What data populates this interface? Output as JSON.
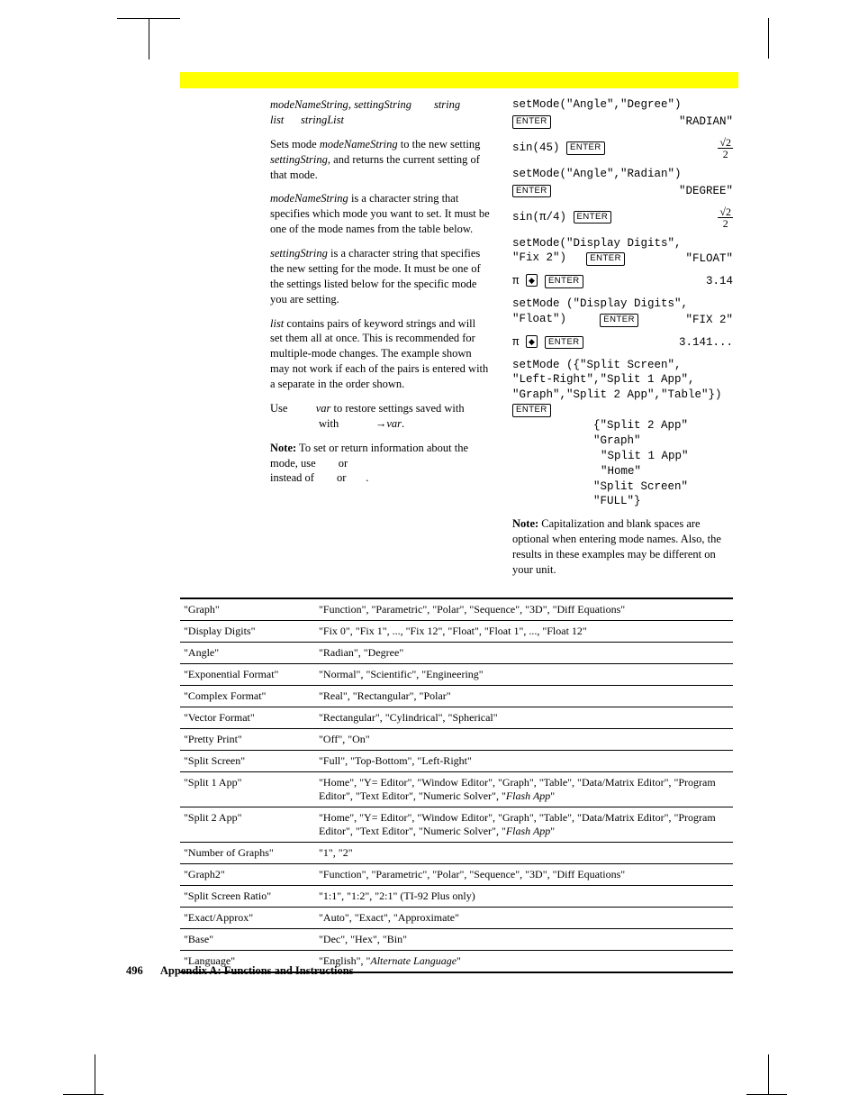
{
  "yellow_bar_color": "#ffff00",
  "left": {
    "syntax1": {
      "a": "modeNameString",
      "b": "settingString",
      "c": "string"
    },
    "syntax2": {
      "a": "list",
      "b": "stringList"
    },
    "p1": {
      "pre": "Sets mode ",
      "i1": "modeNameString",
      "mid": " to the new setting ",
      "i2": "settingString",
      "post": ", and returns the current setting of that mode."
    },
    "p2": {
      "i1": "modeNameString",
      "post": " is a character string that specifies which mode you want to set. It must be one of the mode names from the table below."
    },
    "p3": {
      "i1": "settingString",
      "post": " is a character string that specifies the new setting for the mode. It must be one of the settings listed below for the specific mode you are setting."
    },
    "p4": {
      "i1": "list",
      "post": " contains pairs of keyword strings and will set them all at once. This is recommended for multiple-mode changes. The example shown may not work if each of the pairs is entered with a separate           in the order shown."
    },
    "use": {
      "a": "Use",
      "i1": "var",
      "b": " to restore settings saved with",
      "arrow": "→",
      "i2": "var",
      "dot": "."
    },
    "note": {
      "lead": "Note:",
      "body1": " To set or return information about the ",
      "body2": " mode, use ",
      "or1": " or ",
      "body3": " instead of ",
      "or2": " or ",
      "dot": "."
    }
  },
  "right": {
    "ex1": {
      "cmd": "setMode(\"Angle\",\"Degree\")",
      "result": "\"RADIAN\""
    },
    "ex2": {
      "cmd": "sin(45)",
      "frac": {
        "num": "√2",
        "den": "2"
      }
    },
    "ex3": {
      "cmd": "setMode(\"Angle\",\"Radian\")",
      "result": "\"DEGREE\""
    },
    "ex4": {
      "cmd": "sin(π/4)",
      "frac": {
        "num": "√2",
        "den": "2"
      }
    },
    "ex5": {
      "cmd": "setMode(\"Display Digits\",\n\"Fix 2\")",
      "result": "\"FLOAT\""
    },
    "ex6": {
      "cmd": "π",
      "result": "3.14"
    },
    "ex7": {
      "cmd": "setMode (\"Display Digits\",\n\"Float\")",
      "result": "\"FIX 2\""
    },
    "ex8": {
      "cmd": "π",
      "result": "3.141..."
    },
    "ex9": {
      "cmd": "setMode ({\"Split Screen\",\n\"Left-Right\",\"Split 1 App\",\n\"Graph\",\"Split 2 App\",\"Table\"})"
    },
    "ex9r": [
      "{\"Split 2 App\" \"Graph\"",
      "\"Split 1 App\" \"Home\"",
      "\"Split Screen\" \"FULL\"}"
    ],
    "note": {
      "lead": "Note:",
      "body": " Capitalization and blank spaces are optional when entering mode names. Also, the results in these examples may be different on your unit."
    }
  },
  "table": [
    [
      "\"Graph\"",
      "\"Function\", \"Parametric\", \"Polar\", \"Sequence\", \"3D\", \"Diff Equations\""
    ],
    [
      "\"Display Digits\"",
      "\"Fix 0\", \"Fix 1\", ..., \"Fix 12\", \"Float\", \"Float 1\", ..., \"Float 12\""
    ],
    [
      "\"Angle\"",
      "\"Radian\", \"Degree\""
    ],
    [
      "\"Exponential Format\"",
      "\"Normal\", \"Scientific\", \"Engineering\""
    ],
    [
      "\"Complex Format\"",
      "\"Real\", \"Rectangular\", \"Polar\""
    ],
    [
      "\"Vector Format\"",
      "\"Rectangular\", \"Cylindrical\", \"Spherical\""
    ],
    [
      "\"Pretty Print\"",
      "\"Off\", \"On\""
    ],
    [
      "\"Split Screen\"",
      "\"Full\", \"Top-Bottom\", \"Left-Right\""
    ],
    [
      "\"Split 1 App\"",
      "\"Home\", \"Y= Editor\", \"Window Editor\", \"Graph\", \"Table\", \"Data/Matrix Editor\", \"Program Editor\", \"Text Editor\", \"Numeric Solver\", \"<i>Flash App</i>\""
    ],
    [
      "\"Split 2 App\"",
      "\"Home\", \"Y= Editor\", \"Window Editor\", \"Graph\", \"Table\", \"Data/Matrix Editor\", \"Program Editor\", \"Text Editor\", \"Numeric Solver\", \"<i>Flash App</i>\""
    ],
    [
      "\"Number of Graphs\"",
      "\"1\", \"2\""
    ],
    [
      "\"Graph2\"",
      "\"Function\", \"Parametric\", \"Polar\", \"Sequence\", \"3D\", \"Diff Equations\""
    ],
    [
      "\"Split Screen Ratio\"",
      "\"1:1\", \"1:2\", \"2:1\"  (TI-92 Plus only)"
    ],
    [
      "\"Exact/Approx\"",
      "\"Auto\", \"Exact\", \"Approximate\""
    ],
    [
      "\"Base\"",
      "\"Dec\", \"Hex\", \"Bin\""
    ],
    [
      "\"Language\"",
      "\"English\", \"<i>Alternate Language</i>\""
    ]
  ],
  "footer": {
    "page": "496",
    "title": "Appendix A: Functions and Instructions"
  },
  "key_labels": {
    "enter": "ENTER",
    "diamond": "◆"
  }
}
